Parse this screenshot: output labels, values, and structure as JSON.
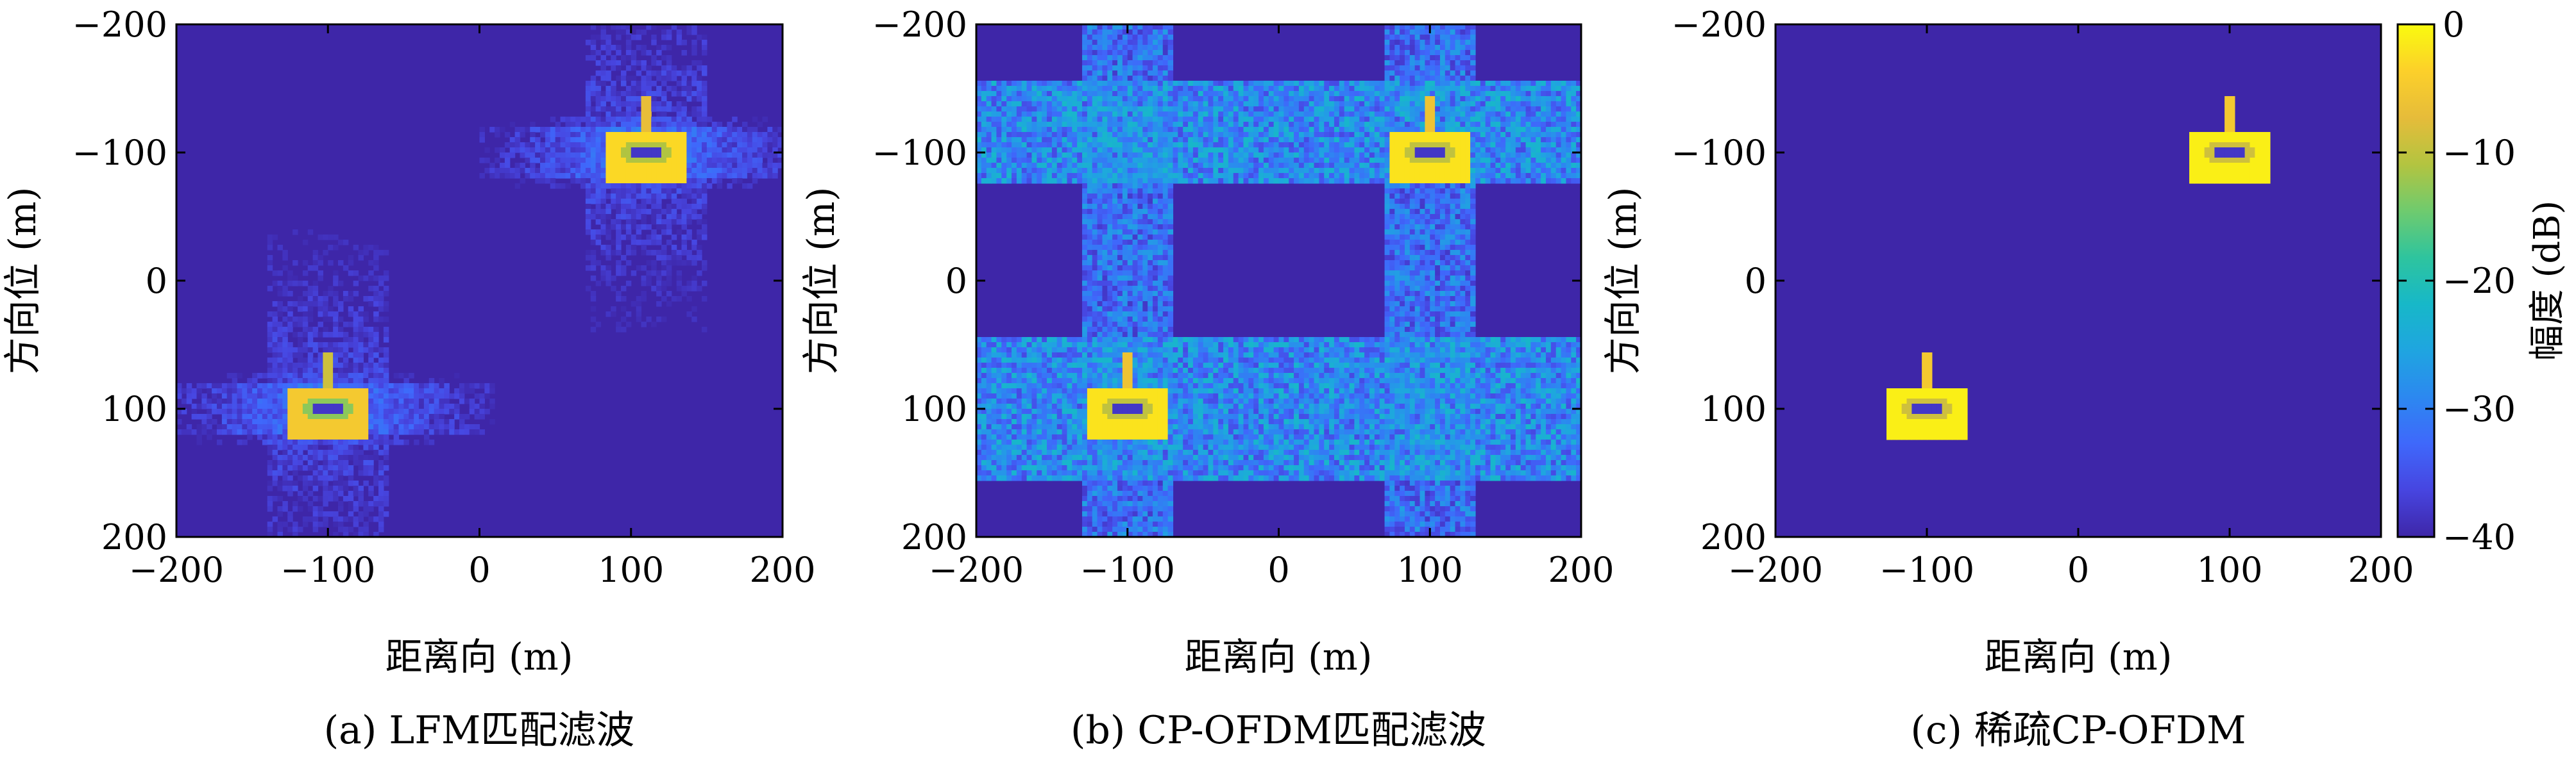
{
  "chart_data": [
    {
      "type": "heatmap",
      "caption": "(a) LFM匹配滤波",
      "xlabel": "距离向 (m)",
      "ylabel": "方向位 (m)",
      "xlim": [
        -200,
        200
      ],
      "ylim": [
        -200,
        200
      ],
      "x_ticks": [
        "−200",
        "−100",
        "0",
        "100",
        "200"
      ],
      "y_ticks": [
        "−200",
        "−100",
        "0",
        "100",
        "200"
      ],
      "background_db": -40,
      "targets": [
        {
          "x": -100,
          "y": 100,
          "peak_db": -5
        },
        {
          "x": 110,
          "y": -100,
          "peak_db": -3
        }
      ],
      "sidelobe_style": "horizontal and vertical streaks through targets"
    },
    {
      "type": "heatmap",
      "caption": "(b) CP-OFDM匹配滤波",
      "xlabel": "距离向 (m)",
      "ylabel": "方向位 (m)",
      "xlim": [
        -200,
        200
      ],
      "ylim": [
        -200,
        200
      ],
      "x_ticks": [
        "−200",
        "−100",
        "0",
        "100",
        "200"
      ],
      "y_ticks": [
        "−200",
        "−100",
        "0",
        "100",
        "200"
      ],
      "background_db": -40,
      "targets": [
        {
          "x": -100,
          "y": 100,
          "peak_db": -2
        },
        {
          "x": 100,
          "y": -100,
          "peak_db": -2
        }
      ],
      "sidelobe_style": "noisy horizontal bands at y ≈ -155..-75 and 45..155; vertical bands near target ranges"
    },
    {
      "type": "heatmap",
      "caption": "(c) 稀疏CP-OFDM",
      "xlabel": "距离向 (m)",
      "ylabel": "方向位 (m)",
      "xlim": [
        -200,
        200
      ],
      "ylim": [
        -200,
        200
      ],
      "x_ticks": [
        "−200",
        "−100",
        "0",
        "100",
        "200"
      ],
      "y_ticks": [
        "−200",
        "−100",
        "0",
        "100",
        "200"
      ],
      "background_db": -40,
      "targets": [
        {
          "x": -100,
          "y": 100,
          "peak_db": -1
        },
        {
          "x": 100,
          "y": -100,
          "peak_db": -1
        }
      ],
      "sidelobe_style": "none (clean background)"
    }
  ],
  "colorbar": {
    "label": "幅度 (dB)",
    "range": [
      -40,
      0
    ],
    "ticks": [
      "0",
      "−10",
      "−20",
      "−30",
      "−40"
    ],
    "colormap": [
      "#3e26a8",
      "#4745e0",
      "#3f68fb",
      "#2c88f0",
      "#1fa5e0",
      "#17b8c8",
      "#2ec49e",
      "#6fcb6e",
      "#b3c440",
      "#e6bc3a",
      "#fcd02a",
      "#f9fb0e"
    ]
  }
}
